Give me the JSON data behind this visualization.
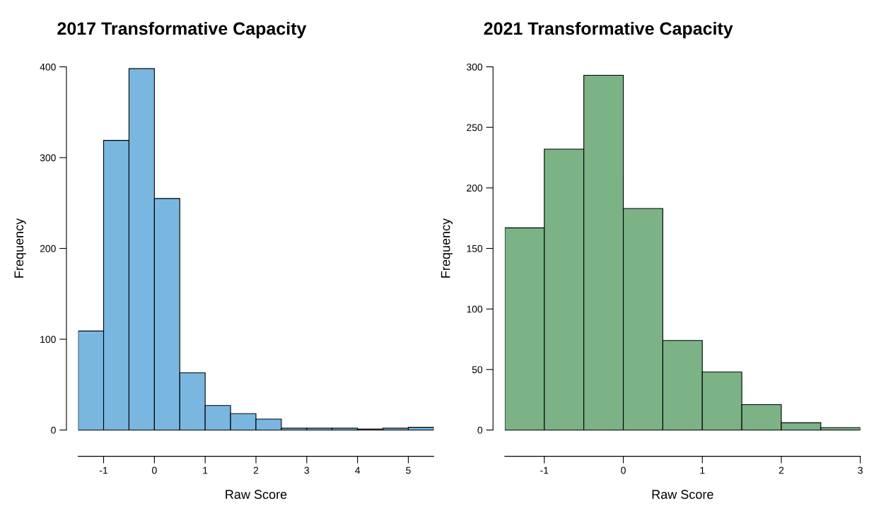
{
  "chart_data": [
    {
      "type": "histogram",
      "title": "2017 Transformative Capacity",
      "xlabel": "Raw Score",
      "ylabel": "Frequency",
      "color": "#79b7e1",
      "bins": [
        -1.5,
        -1,
        -0.5,
        0,
        0.5,
        1,
        1.5,
        2,
        2.5,
        3,
        3.5,
        4,
        4.5,
        5,
        5.5
      ],
      "values": [
        109,
        319,
        398,
        255,
        63,
        27,
        18,
        12,
        2,
        2,
        2,
        1,
        2,
        3
      ],
      "xlim": [
        -1.5,
        5.5
      ],
      "xticks": [
        -1,
        0,
        1,
        2,
        3,
        4,
        5
      ],
      "ylim": [
        0,
        400
      ],
      "yticks": [
        0,
        100,
        200,
        300,
        400
      ],
      "grid": false
    },
    {
      "type": "histogram",
      "title": "2021 Transformative Capacity",
      "xlabel": "Raw Score",
      "ylabel": "Frequency",
      "color": "#7bb286",
      "bins": [
        -1.5,
        -1,
        -0.5,
        0,
        0.5,
        1,
        1.5,
        2,
        2.5,
        3
      ],
      "values": [
        167,
        232,
        293,
        183,
        74,
        48,
        21,
        6,
        2
      ],
      "xlim": [
        -1.5,
        3
      ],
      "xticks": [
        -1,
        0,
        1,
        2,
        3
      ],
      "ylim": [
        0,
        300
      ],
      "yticks": [
        0,
        50,
        100,
        150,
        200,
        250,
        300
      ],
      "grid": false
    }
  ]
}
